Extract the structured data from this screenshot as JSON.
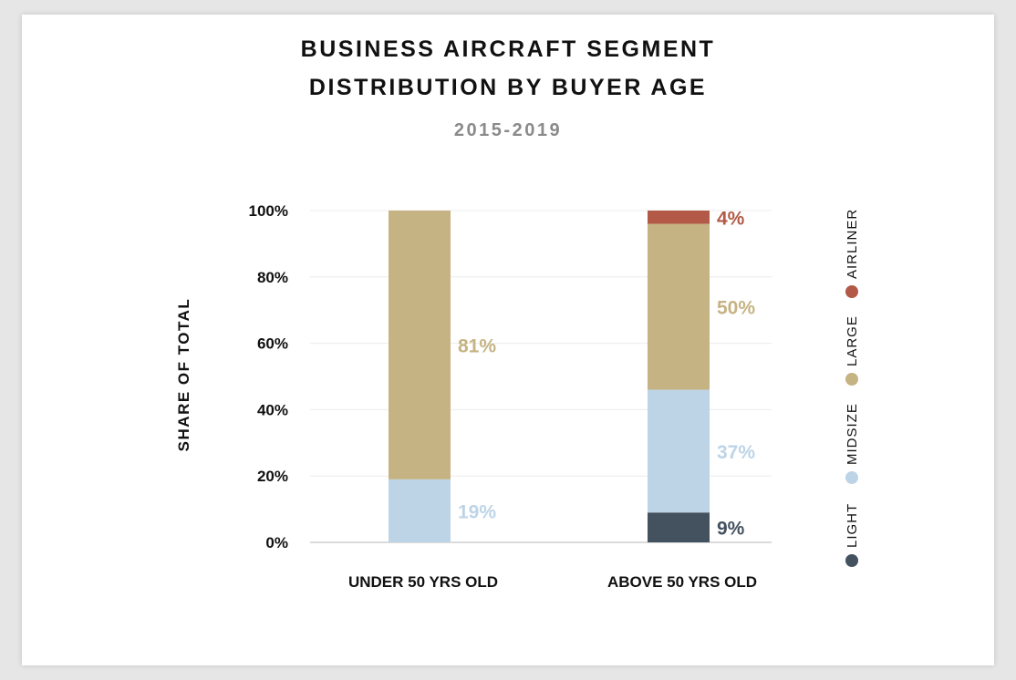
{
  "chart_data": {
    "type": "bar",
    "stacked": true,
    "title_line1": "BUSINESS AIRCRAFT SEGMENT",
    "title_line2": "DISTRIBUTION BY BUYER AGE",
    "subtitle": "2015-2019",
    "ylabel": "SHARE OF TOTAL",
    "xlabel": "",
    "ylim": [
      0,
      100
    ],
    "y_ticks": [
      "0%",
      "20%",
      "40%",
      "60%",
      "80%",
      "100%"
    ],
    "grid": true,
    "legend_position": "right",
    "categories": [
      "UNDER 50 YRS OLD",
      "ABOVE 50 YRS OLD"
    ],
    "series": [
      {
        "name": "LIGHT",
        "color": "#44525f",
        "values": [
          0,
          9
        ],
        "labels": [
          "",
          "9%"
        ]
      },
      {
        "name": "MIDSIZE",
        "color": "#bdd4e7",
        "values": [
          19,
          37
        ],
        "labels": [
          "19%",
          "37%"
        ]
      },
      {
        "name": "LARGE",
        "color": "#c6b384",
        "values": [
          81,
          50
        ],
        "labels": [
          "81%",
          "50%"
        ]
      },
      {
        "name": "AIRLINER",
        "color": "#b25a47",
        "values": [
          0,
          4
        ],
        "labels": [
          "",
          "4%"
        ]
      }
    ]
  }
}
